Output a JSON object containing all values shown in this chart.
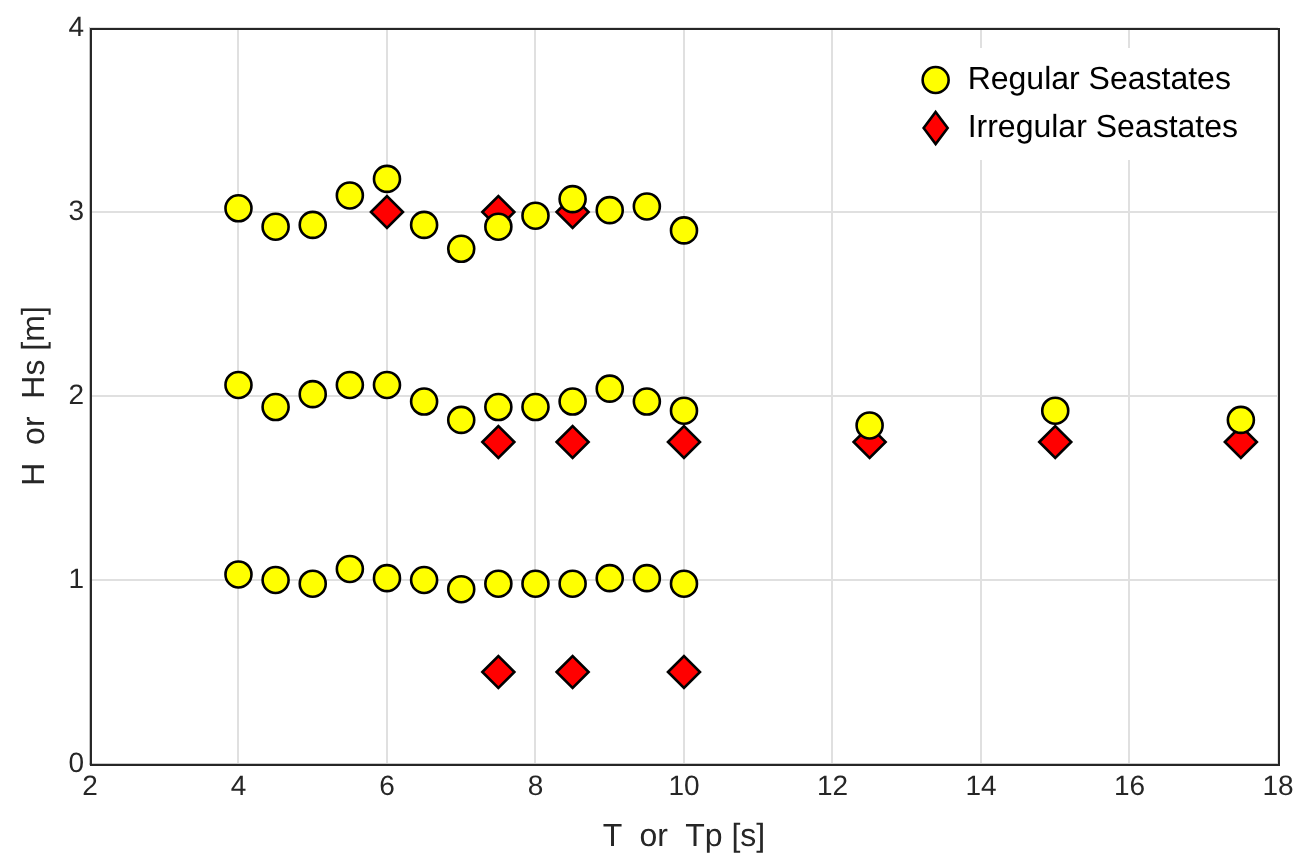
{
  "chart_data": {
    "type": "scatter",
    "xlabel": "T  or  Tp [s]",
    "ylabel": "H  or  Hs [m]",
    "xlim": [
      2,
      18
    ],
    "xticks": [
      2,
      4,
      6,
      8,
      10,
      12,
      14,
      16,
      18
    ],
    "ylim": [
      0,
      4
    ],
    "yticks": [
      0,
      1,
      2,
      3,
      4
    ],
    "grid": true,
    "legend": "top right",
    "series": [
      {
        "name": "Regular Seastates",
        "color": "#ffff00",
        "marker": "circle",
        "x": [
          4,
          4.5,
          5,
          5.5,
          6,
          6.5,
          7,
          7.5,
          8,
          8.5,
          9,
          9.5,
          10,
          4,
          4.5,
          5,
          5.5,
          6,
          6.5,
          7,
          7.5,
          8,
          8.5,
          9,
          9.5,
          10,
          12.5,
          15,
          17.5,
          4,
          4.5,
          5,
          5.5,
          6,
          6.5,
          7,
          7.5,
          8,
          8.5,
          9,
          9.5,
          10
        ],
        "values": [
          3.02,
          2.92,
          2.93,
          3.09,
          3.18,
          2.93,
          2.8,
          2.92,
          2.98,
          3.07,
          3.01,
          3.03,
          2.9,
          2.06,
          1.94,
          2.01,
          2.06,
          2.06,
          1.97,
          1.87,
          1.94,
          1.94,
          1.97,
          2.04,
          1.97,
          1.92,
          1.84,
          1.92,
          1.87,
          1.03,
          1,
          0.98,
          1.06,
          1.01,
          1,
          0.95,
          0.98,
          0.98,
          0.98,
          1.01,
          1.01,
          0.98
        ]
      },
      {
        "name": "Irregular Seastates",
        "color": "#ff0000",
        "marker": "diamond",
        "x": [
          6,
          7.5,
          8.5,
          7.5,
          8.5,
          10,
          12.5,
          15,
          17.5,
          7.5,
          8.5,
          10
        ],
        "values": [
          3,
          3,
          3,
          1.75,
          1.75,
          1.75,
          1.75,
          1.75,
          1.75,
          0.5,
          0.5,
          0.5
        ]
      }
    ]
  }
}
